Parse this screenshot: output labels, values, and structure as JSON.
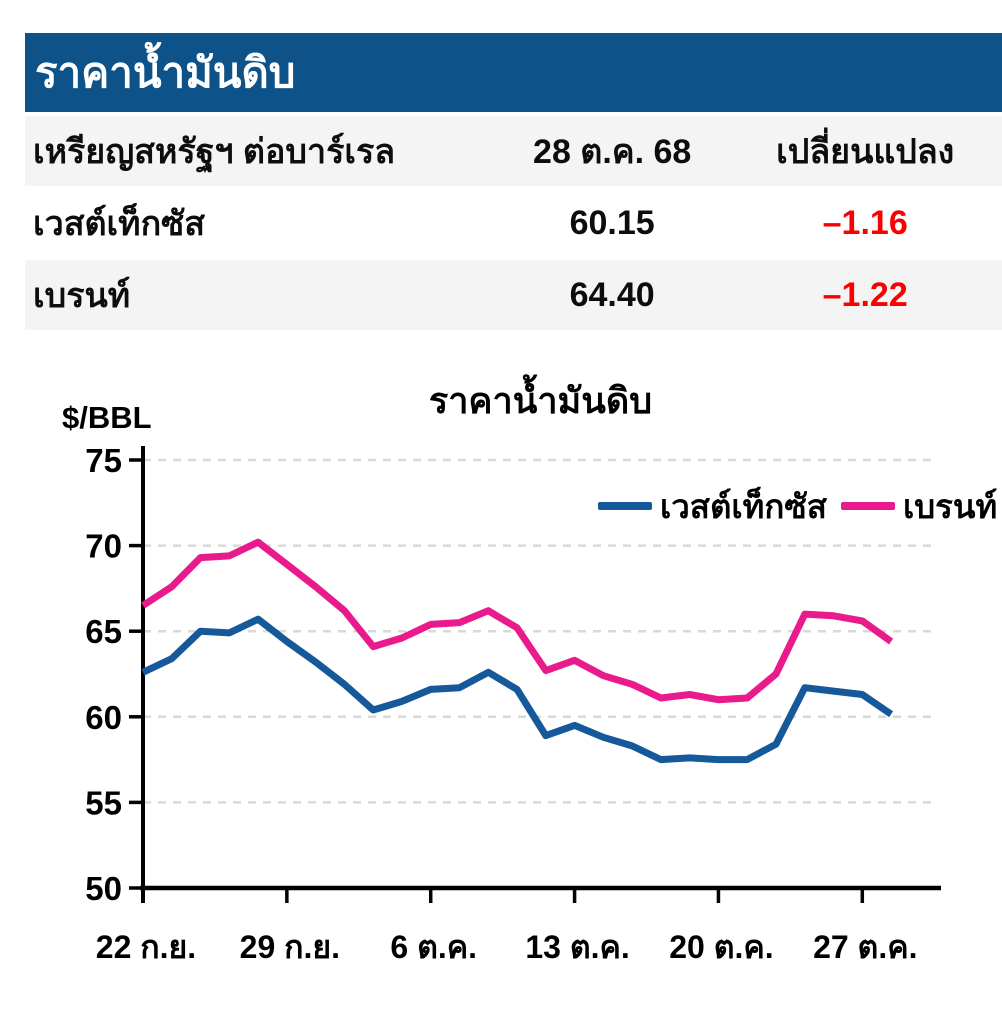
{
  "page": {
    "title": "ราคาน้ำมันดิบ"
  },
  "colors": {
    "header_bg": "#0d5288",
    "header_text": "#ffffff",
    "row_alt": "#f4f4f4",
    "negative": "#fa0000",
    "gridline": "#d9d9d9",
    "axis": "#000000",
    "wti_line": "#15599a",
    "brent_line": "#e81a8c"
  },
  "table": {
    "header": {
      "col1": "เหรียญสหรัฐฯ ต่อบาร์เรล",
      "col2": "28 ต.ค. 68",
      "col3": "เปลี่ยนแปลง"
    },
    "rows": [
      {
        "name": "เวสต์เท็กซัส",
        "price": "60.15",
        "change": "–1.16"
      },
      {
        "name": "เบรนท์",
        "price": "64.40",
        "change": "–1.22"
      }
    ]
  },
  "chart_data": {
    "type": "line",
    "title": "ราคาน้ำมันดิบ",
    "ylabel": "$/BBL",
    "ylim": [
      50,
      75
    ],
    "yticks": [
      50,
      55,
      60,
      65,
      70,
      75
    ],
    "grid": "horizontal dashed",
    "legend_position": "top-right inside plot",
    "x": [
      "22 ก.ย.",
      "23 ก.ย.",
      "24 ก.ย.",
      "25 ก.ย.",
      "26 ก.ย.",
      "29 ก.ย.",
      "30 ก.ย.",
      "1 ต.ค.",
      "2 ต.ค.",
      "3 ต.ค.",
      "6 ต.ค.",
      "7 ต.ค.",
      "8 ต.ค.",
      "9 ต.ค.",
      "10 ต.ค.",
      "13 ต.ค.",
      "14 ต.ค.",
      "15 ต.ค.",
      "16 ต.ค.",
      "17 ต.ค.",
      "20 ต.ค.",
      "21 ต.ค.",
      "22 ต.ค.",
      "23 ต.ค.",
      "24 ต.ค.",
      "27 ต.ค.",
      "28 ต.ค."
    ],
    "xtick_labels": [
      "22 ก.ย.",
      "29 ก.ย.",
      "6 ต.ค.",
      "13 ต.ค.",
      "20 ต.ค.",
      "27 ต.ค."
    ],
    "xtick_indices": [
      0,
      5,
      10,
      15,
      20,
      25
    ],
    "series": [
      {
        "name": "เวสต์เท็กซัส",
        "color": "#15599a",
        "values": [
          62.6,
          63.4,
          65.0,
          64.9,
          65.7,
          64.4,
          63.2,
          61.9,
          60.4,
          60.9,
          61.6,
          61.7,
          62.6,
          61.6,
          58.9,
          59.5,
          58.8,
          58.3,
          57.5,
          57.6,
          57.5,
          57.5,
          58.4,
          61.7,
          61.5,
          61.3,
          60.15
        ]
      },
      {
        "name": "เบรนท์",
        "color": "#e81a8c",
        "values": [
          66.5,
          67.6,
          69.3,
          69.4,
          70.2,
          68.9,
          67.6,
          66.2,
          64.1,
          64.6,
          65.4,
          65.5,
          66.2,
          65.2,
          62.7,
          63.3,
          62.4,
          61.9,
          61.1,
          61.3,
          61.0,
          61.1,
          62.5,
          66.0,
          65.9,
          65.6,
          64.4
        ]
      }
    ]
  }
}
